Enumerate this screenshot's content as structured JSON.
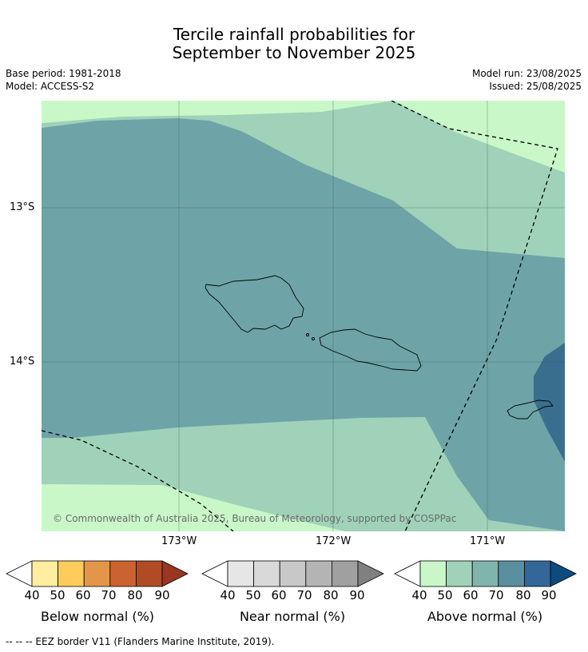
{
  "title": {
    "line1": "Tercile rainfall probabilities for",
    "line2": "September to November 2025"
  },
  "meta": {
    "base_period": "Base period: 1981-2018",
    "model": "Model: ACCESS-S2",
    "model_run": "Model run: 23/08/2025",
    "issued": "Issued: 25/08/2025"
  },
  "map": {
    "lat_labels": [
      "13°S",
      "14°S"
    ],
    "lon_labels": [
      "173°W",
      "172°W",
      "171°W"
    ],
    "copyright": "© Commonwealth of Australia 2025, Bureau of Meteorology, supported by COSPPac",
    "colors": {
      "above_50": "#c9f7c8",
      "above_60": "#9fd2b9",
      "above_70": "#6ea4a7",
      "above_80": "#3a6e8e",
      "border": "#000000"
    }
  },
  "legend": {
    "ticks": [
      "40",
      "50",
      "60",
      "70",
      "80",
      "90"
    ],
    "below": {
      "label": "Below normal (%)",
      "colors": [
        "#ffffff",
        "#ffeda0",
        "#fecc5c",
        "#e3964a",
        "#cc6230",
        "#b14b25",
        "#9a3621"
      ]
    },
    "near": {
      "label": "Near normal (%)",
      "colors": [
        "#ffffff",
        "#e6e6e6",
        "#d9d9d9",
        "#c8c8c8",
        "#b4b4b4",
        "#a0a0a0",
        "#808080"
      ]
    },
    "above": {
      "label": "Above normal (%)",
      "colors": [
        "#ffffff",
        "#c9f7c8",
        "#9fd2b9",
        "#80b5ad",
        "#5a8fa0",
        "#33679a",
        "#0d4a80"
      ]
    }
  },
  "footer": {
    "eez": "--  --  -- EEZ border V11 (Flanders Marine Institute, 2019)."
  }
}
